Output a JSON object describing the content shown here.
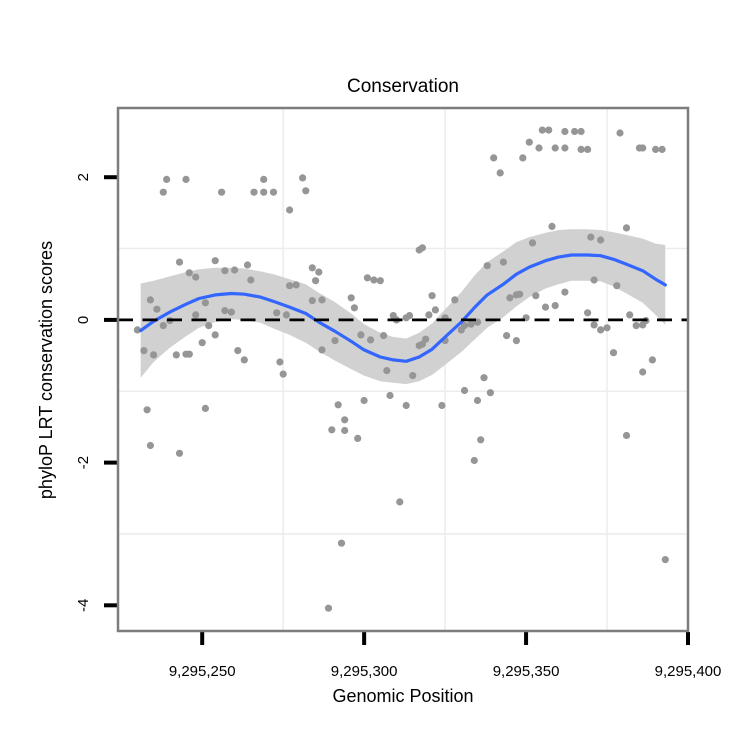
{
  "title": "Conservation",
  "x_axis": {
    "label": "Genomic Position",
    "ticks": [
      {
        "value": 9295250,
        "label": "9,295,250"
      },
      {
        "value": 9295300,
        "label": "9,295,300"
      },
      {
        "value": 9295350,
        "label": "9,295,350"
      },
      {
        "value": 9295400,
        "label": "9,295,400"
      }
    ]
  },
  "y_axis": {
    "label": "phyloP LRT conservation scores",
    "ticks": [
      {
        "value": 2,
        "label": "2"
      },
      {
        "value": 0,
        "label": "0"
      },
      {
        "value": -2,
        "label": "-2"
      },
      {
        "value": -4,
        "label": "-4"
      }
    ]
  },
  "chart_data": {
    "type": "scatter",
    "title": "Conservation",
    "xlabel": "Genomic Position",
    "ylabel": "phyloP LRT conservation scores",
    "xlim": [
      9295224,
      9295400
    ],
    "ylim": [
      -4.36,
      2.97
    ],
    "grid": {
      "x_minor": [
        9295275,
        9295325,
        9295375
      ],
      "y_minor": [
        1,
        -1,
        -3
      ]
    },
    "zero_line": 0,
    "points": [
      [
        9295239,
        1.97
      ],
      [
        9295245,
        1.97
      ],
      [
        9295238,
        1.79
      ],
      [
        9295256,
        1.79
      ],
      [
        9295266,
        1.79
      ],
      [
        9295269,
        1.79
      ],
      [
        9295272,
        1.79
      ],
      [
        9295269,
        1.97
      ],
      [
        9295281,
        1.99
      ],
      [
        9295282,
        1.81
      ],
      [
        9295277,
        1.54
      ],
      [
        9295340,
        2.27
      ],
      [
        9295342,
        2.06
      ],
      [
        9295317,
        0.98
      ],
      [
        9295318,
        1.01
      ],
      [
        9295355,
        2.66
      ],
      [
        9295357,
        2.66
      ],
      [
        9295362,
        2.64
      ],
      [
        9295365,
        2.64
      ],
      [
        9295367,
        2.64
      ],
      [
        9295379,
        2.62
      ],
      [
        9295351,
        2.49
      ],
      [
        9295349,
        2.27
      ],
      [
        9295354,
        2.41
      ],
      [
        9295359,
        2.41
      ],
      [
        9295362,
        2.41
      ],
      [
        9295367,
        2.39
      ],
      [
        9295369,
        2.39
      ],
      [
        9295385,
        2.41
      ],
      [
        9295386,
        2.41
      ],
      [
        9295390,
        2.39
      ],
      [
        9295392,
        2.39
      ],
      [
        9295358,
        1.31
      ],
      [
        9295370,
        1.16
      ],
      [
        9295373,
        1.12
      ],
      [
        9295352,
        1.08
      ],
      [
        9295381,
        1.29
      ],
      [
        9295343,
        0.81
      ],
      [
        9295371,
        0.56
      ],
      [
        9295243,
        0.81
      ],
      [
        9295254,
        0.83
      ],
      [
        9295257,
        0.69
      ],
      [
        9295260,
        0.7
      ],
      [
        9295264,
        0.77
      ],
      [
        9295246,
        0.66
      ],
      [
        9295248,
        0.6
      ],
      [
        9295265,
        0.56
      ],
      [
        9295277,
        0.48
      ],
      [
        9295279,
        0.49
      ],
      [
        9295284,
        0.73
      ],
      [
        9295286,
        0.67
      ],
      [
        9295301,
        0.59
      ],
      [
        9295303,
        0.56
      ],
      [
        9295305,
        0.55
      ],
      [
        9295338,
        0.76
      ],
      [
        9295234,
        0.28
      ],
      [
        9295236,
        0.15
      ],
      [
        9295230,
        -0.14
      ],
      [
        9295238,
        -0.08
      ],
      [
        9295240,
        -0.01
      ],
      [
        9295248,
        0.07
      ],
      [
        9295251,
        0.24
      ],
      [
        9295252,
        -0.08
      ],
      [
        9295254,
        -0.21
      ],
      [
        9295250,
        -0.32
      ],
      [
        9295232,
        -0.43
      ],
      [
        9295235,
        -0.49
      ],
      [
        9295242,
        -0.49
      ],
      [
        9295245,
        -0.48
      ],
      [
        9295246,
        -0.48
      ],
      [
        9295257,
        0.13
      ],
      [
        9295259,
        0.11
      ],
      [
        9295261,
        -0.43
      ],
      [
        9295263,
        -0.56
      ],
      [
        9295273,
        0.1
      ],
      [
        9295276,
        0.07
      ],
      [
        9295274,
        -0.59
      ],
      [
        9295275,
        -0.76
      ],
      [
        9295233,
        -1.26
      ],
      [
        9295251,
        -1.24
      ],
      [
        9295234,
        -1.76
      ],
      [
        9295243,
        -1.87
      ],
      [
        9295284,
        0.27
      ],
      [
        9295285,
        0.55
      ],
      [
        9295287,
        0.28
      ],
      [
        9295296,
        0.31
      ],
      [
        9295297,
        0.17
      ],
      [
        9295291,
        -0.29
      ],
      [
        9295287,
        -0.42
      ],
      [
        9295299,
        -0.21
      ],
      [
        9295302,
        -0.28
      ],
      [
        9295306,
        -0.22
      ],
      [
        9295309,
        0.06
      ],
      [
        9295310,
        0.0
      ],
      [
        9295313,
        0.03
      ],
      [
        9295314,
        0.06
      ],
      [
        9295320,
        0.07
      ],
      [
        9295321,
        0.34
      ],
      [
        9295322,
        0.14
      ],
      [
        9295325,
        0.03
      ],
      [
        9295328,
        0.28
      ],
      [
        9295330,
        -0.14
      ],
      [
        9295317,
        -0.36
      ],
      [
        9295318,
        -0.34
      ],
      [
        9295319,
        -0.27
      ],
      [
        9295325,
        -0.29
      ],
      [
        9295331,
        -0.08
      ],
      [
        9295333,
        -0.06
      ],
      [
        9295335,
        -0.03
      ],
      [
        9295307,
        -0.71
      ],
      [
        9295315,
        -0.78
      ],
      [
        9295337,
        -0.81
      ],
      [
        9295331,
        -0.99
      ],
      [
        9295339,
        -1.02
      ],
      [
        9295308,
        -1.06
      ],
      [
        9295300,
        -1.13
      ],
      [
        9295292,
        -1.19
      ],
      [
        9295313,
        -1.2
      ],
      [
        9295324,
        -1.2
      ],
      [
        9295335,
        -1.13
      ],
      [
        9295294,
        -1.4
      ],
      [
        9295290,
        -1.54
      ],
      [
        9295294,
        -1.55
      ],
      [
        9295298,
        -1.66
      ],
      [
        9295336,
        -1.68
      ],
      [
        9295334,
        -1.97
      ],
      [
        9295345,
        0.31
      ],
      [
        9295347,
        0.35
      ],
      [
        9295348,
        0.36
      ],
      [
        9295353,
        0.34
      ],
      [
        9295356,
        0.18
      ],
      [
        9295359,
        0.2
      ],
      [
        9295362,
        0.39
      ],
      [
        9295369,
        0.1
      ],
      [
        9295350,
        0.03
      ],
      [
        9295344,
        -0.22
      ],
      [
        9295347,
        -0.29
      ],
      [
        9295371,
        -0.07
      ],
      [
        9295373,
        -0.14
      ],
      [
        9295375,
        -0.11
      ],
      [
        9295378,
        0.48
      ],
      [
        9295382,
        0.07
      ],
      [
        9295384,
        -0.08
      ],
      [
        9295386,
        -0.07
      ],
      [
        9295387,
        -0.01
      ],
      [
        9295377,
        -0.46
      ],
      [
        9295389,
        -0.56
      ],
      [
        9295386,
        -0.73
      ],
      [
        9295381,
        -1.62
      ],
      [
        9295311,
        -2.55
      ],
      [
        9295293,
        -3.13
      ],
      [
        9295289,
        -4.04
      ],
      [
        9295393,
        -3.36
      ]
    ],
    "smooth": {
      "x": [
        9295231,
        9295235,
        9295240,
        9295245,
        9295249,
        9295254,
        9295259,
        9295263,
        9295268,
        9295272,
        9295277,
        9295282,
        9295286,
        9295291,
        9295296,
        9295300,
        9295305,
        9295309,
        9295313,
        9295317,
        9295321,
        9295325,
        9295330,
        9295334,
        9295338,
        9295343,
        9295347,
        9295351,
        9295356,
        9295360,
        9295364,
        9295369,
        9295373,
        9295377,
        9295381,
        9295386,
        9295390,
        9295393
      ],
      "y": [
        -0.15,
        -0.02,
        0.11,
        0.22,
        0.3,
        0.35,
        0.37,
        0.36,
        0.32,
        0.26,
        0.18,
        0.09,
        -0.03,
        -0.16,
        -0.3,
        -0.42,
        -0.52,
        -0.56,
        -0.58,
        -0.52,
        -0.41,
        -0.24,
        -0.03,
        0.17,
        0.35,
        0.5,
        0.64,
        0.74,
        0.83,
        0.88,
        0.91,
        0.91,
        0.9,
        0.85,
        0.78,
        0.69,
        0.57,
        0.49
      ],
      "ci": [
        0.66,
        0.57,
        0.5,
        0.45,
        0.41,
        0.38,
        0.36,
        0.36,
        0.36,
        0.38,
        0.39,
        0.41,
        0.41,
        0.41,
        0.39,
        0.36,
        0.34,
        0.32,
        0.32,
        0.34,
        0.36,
        0.39,
        0.42,
        0.45,
        0.46,
        0.46,
        0.45,
        0.42,
        0.39,
        0.38,
        0.36,
        0.36,
        0.36,
        0.38,
        0.41,
        0.45,
        0.5,
        0.56
      ]
    },
    "colors": {
      "background": "#ffffff",
      "point": "#969696",
      "smooth_line": "#3366FF",
      "confidence_band": "#d1d1d1",
      "zero_line": "#000000",
      "panel_border": "#7d7d7d",
      "minor_gridline": "#ececec",
      "tick_mark": "#000000",
      "text": "#000000"
    },
    "legend": "none"
  }
}
